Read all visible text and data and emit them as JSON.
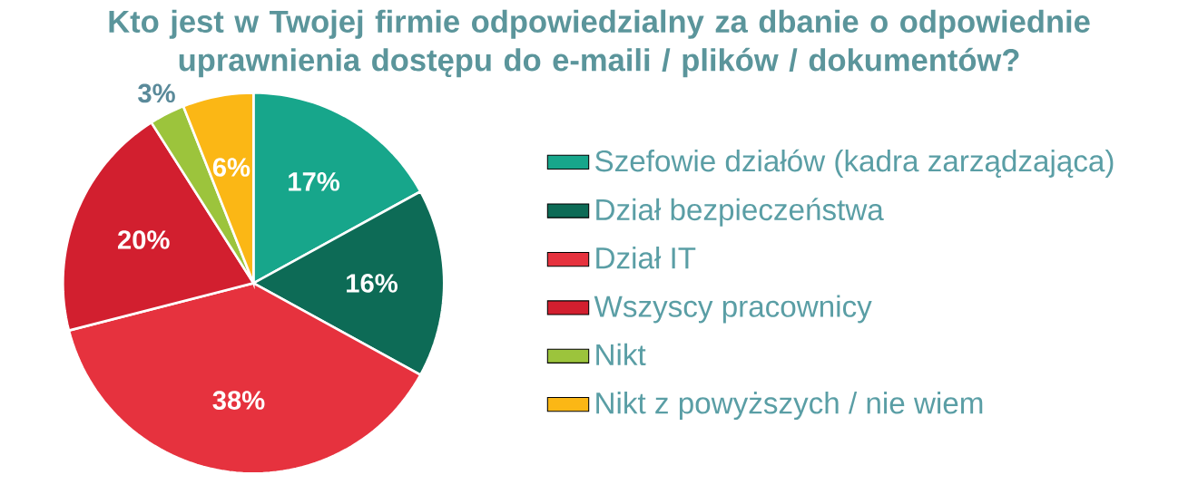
{
  "chart_data": {
    "type": "pie",
    "title": "Kto jest w Twojej firmie odpowiedzialny za dbanie o odpowiednie uprawnienia dostępu do e-maili / plików / dokumentów?",
    "categories": [
      "Szefowie działów (kadra zarządzająca)",
      "Dział bezpieczeństwa",
      "Dział IT",
      "Wszyscy pracownicy",
      "Nikt",
      "Nikt z powyższych / nie wiem"
    ],
    "values": [
      17,
      16,
      38,
      20,
      3,
      6
    ],
    "value_labels": [
      "17%",
      "16%",
      "38%",
      "20%",
      "3%",
      "6%"
    ],
    "colors": [
      "#17a68b",
      "#0d6b56",
      "#e6323e",
      "#d21f2f",
      "#9cc43c",
      "#fbb715"
    ],
    "legend": "right"
  }
}
